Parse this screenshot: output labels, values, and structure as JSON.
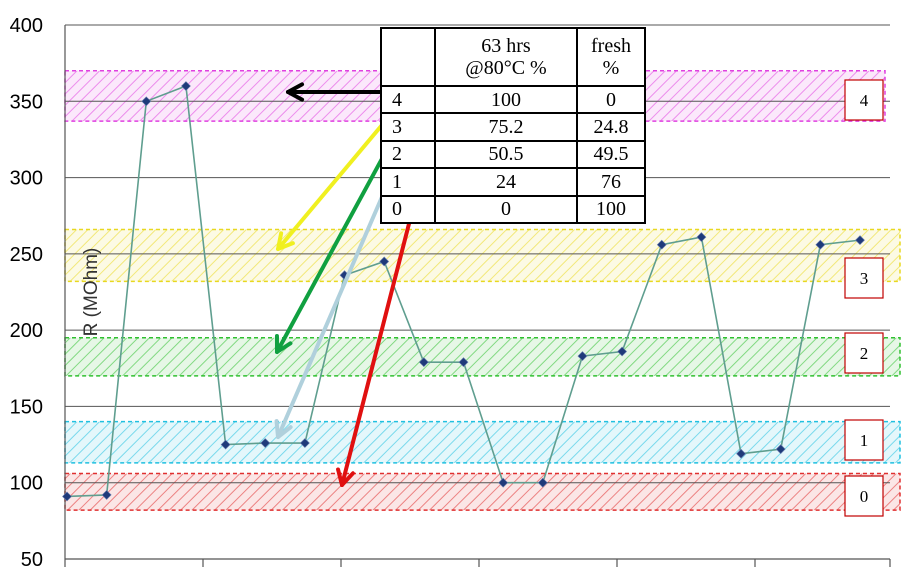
{
  "chart_data": {
    "type": "line",
    "ylabel": "R (MOhm)",
    "ylim": [
      50,
      400
    ],
    "yticks": [
      50,
      100,
      150,
      200,
      250,
      300,
      350,
      400
    ],
    "ytick_labels": [
      "50",
      "100",
      "150",
      "200",
      "250",
      "300",
      "350",
      "400"
    ],
    "grid": "horizontal",
    "series": [
      {
        "color": "#5f9e8f",
        "marker_color": "#1f3a7a",
        "values": [
          91,
          92,
          350,
          360,
          125,
          126,
          126,
          236,
          245,
          179,
          179,
          100,
          100,
          183,
          186,
          256,
          261,
          119,
          122,
          256,
          259
        ]
      }
    ],
    "bands": [
      {
        "label": "4",
        "low": 337,
        "high": 370,
        "color": "#e040e0"
      },
      {
        "label": "3",
        "low": 232,
        "high": 266,
        "color": "#e8d820"
      },
      {
        "label": "2",
        "low": 170,
        "high": 195,
        "color": "#30c030"
      },
      {
        "label": "1",
        "low": 113,
        "high": 140,
        "color": "#20c0e0"
      },
      {
        "label": "0",
        "low": 82,
        "high": 106,
        "color": "#e03030"
      }
    ],
    "arrow_colors": [
      "#000000",
      "#f0f020",
      "#10a040",
      "#b0d0dc",
      "#e01010"
    ]
  },
  "table": {
    "header": [
      "",
      "63 hrs\n@80°C  %",
      "fresh\n%"
    ],
    "rows": [
      [
        "4",
        "100",
        "0"
      ],
      [
        "3",
        "75.2",
        "24.8"
      ],
      [
        "2",
        "50.5",
        "49.5"
      ],
      [
        "1",
        "24",
        "76"
      ],
      [
        "0",
        "0",
        "100"
      ]
    ]
  }
}
